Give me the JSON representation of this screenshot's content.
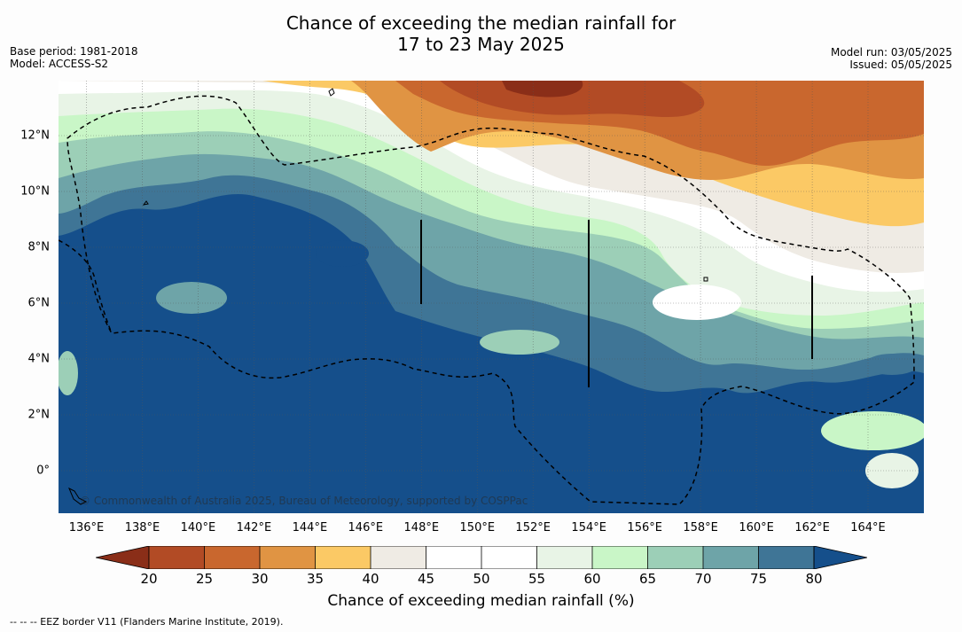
{
  "title_line1": "Chance of exceeding the median rainfall for",
  "title_line2": "17 to 23 May 2025",
  "meta": {
    "base_period": "Base period: 1981-2018",
    "model": "Model: ACCESS-S2",
    "model_run": "Model run: 03/05/2025",
    "issued": "Issued: 05/05/2025"
  },
  "map": {
    "lon_labels": [
      "136°E",
      "138°E",
      "140°E",
      "142°E",
      "144°E",
      "146°E",
      "148°E",
      "150°E",
      "152°E",
      "154°E",
      "156°E",
      "158°E",
      "160°E",
      "162°E",
      "164°E"
    ],
    "lat_labels": [
      "12°N",
      "10°N",
      "8°N",
      "6°N",
      "4°N",
      "2°N",
      "0°"
    ],
    "copyright": "© Commonwealth of Australia 2025, Bureau of Meteorology, supported by COSPPac",
    "colors": [
      "#8a2e18",
      "#b24b25",
      "#c9672e",
      "#e09443",
      "#fbc965",
      "#efebe4",
      "#ffffff",
      "#ffffff",
      "#e8f4e6",
      "#c9f6c7",
      "#9ccfb7",
      "#6ea4a8",
      "#3f7596",
      "#154f8b"
    ]
  },
  "colorbar": {
    "ticks": [
      "20",
      "25",
      "30",
      "35",
      "40",
      "45",
      "50",
      "55",
      "60",
      "65",
      "70",
      "75",
      "80"
    ],
    "label": "Chance of exceeding median rainfall (%)"
  },
  "footnote": "--  --  -- EEZ border V11 (Flanders Marine Institute, 2019)."
}
